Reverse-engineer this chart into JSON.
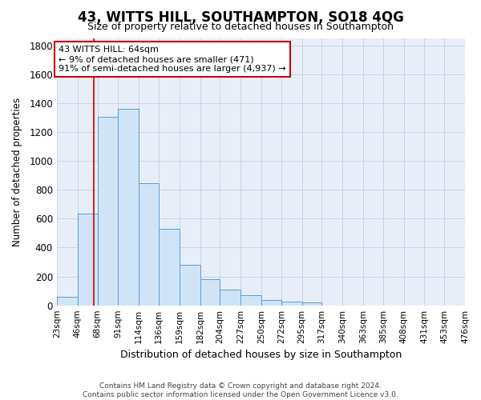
{
  "title1": "43, WITTS HILL, SOUTHAMPTON, SO18 4QG",
  "title2": "Size of property relative to detached houses in Southampton",
  "xlabel": "Distribution of detached houses by size in Southampton",
  "ylabel": "Number of detached properties",
  "bin_labels": [
    "23sqm",
    "46sqm",
    "68sqm",
    "91sqm",
    "114sqm",
    "136sqm",
    "159sqm",
    "182sqm",
    "204sqm",
    "227sqm",
    "250sqm",
    "272sqm",
    "295sqm",
    "317sqm",
    "340sqm",
    "363sqm",
    "385sqm",
    "408sqm",
    "431sqm",
    "453sqm",
    "476sqm"
  ],
  "bin_edges": [
    23,
    46,
    68,
    91,
    114,
    136,
    159,
    182,
    204,
    227,
    250,
    272,
    295,
    317,
    340,
    363,
    385,
    408,
    431,
    453,
    476
  ],
  "bar_heights": [
    60,
    635,
    1305,
    1360,
    845,
    530,
    280,
    180,
    108,
    70,
    35,
    28,
    18,
    0,
    0,
    0,
    0,
    0,
    0,
    0
  ],
  "bar_color": "#d0e4f7",
  "bar_edge_color": "#5b9bd5",
  "grid_color": "#c8d4e8",
  "bg_color": "#e8eef8",
  "fig_bg_color": "#ffffff",
  "red_line_x": 64,
  "annotation_text": "43 WITTS HILL: 64sqm\n← 9% of detached houses are smaller (471)\n91% of semi-detached houses are larger (4,937) →",
  "annotation_box_color": "#ffffff",
  "annotation_box_edge": "#cc0000",
  "ylim": [
    0,
    1850
  ],
  "yticks": [
    0,
    200,
    400,
    600,
    800,
    1000,
    1200,
    1400,
    1600,
    1800
  ],
  "title1_fontsize": 12,
  "title2_fontsize": 9,
  "footnote": "Contains HM Land Registry data © Crown copyright and database right 2024.\nContains public sector information licensed under the Open Government Licence v3.0."
}
